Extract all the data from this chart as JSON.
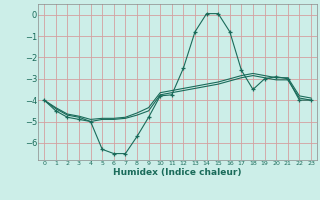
{
  "xlabel": "Humidex (Indice chaleur)",
  "bg_color": "#cceee8",
  "grid_color": "#d4a0a0",
  "line_color": "#1a6b5a",
  "spine_color": "#8a8a8a",
  "xlim": [
    -0.5,
    23.5
  ],
  "ylim": [
    -6.8,
    0.5
  ],
  "yticks": [
    0,
    -1,
    -2,
    -3,
    -4,
    -5,
    -6
  ],
  "xticks": [
    0,
    1,
    2,
    3,
    4,
    5,
    6,
    7,
    8,
    9,
    10,
    11,
    12,
    13,
    14,
    15,
    16,
    17,
    18,
    19,
    20,
    21,
    22,
    23
  ],
  "series1_x": [
    0,
    1,
    2,
    3,
    4,
    5,
    6,
    7,
    8,
    9,
    10,
    11,
    12,
    13,
    14,
    15,
    16,
    17,
    18,
    19,
    20,
    21,
    22,
    23
  ],
  "series1_y": [
    -4.0,
    -4.5,
    -4.8,
    -4.9,
    -5.0,
    -6.3,
    -6.5,
    -6.5,
    -5.7,
    -4.8,
    -3.8,
    -3.75,
    -2.5,
    -0.8,
    0.05,
    0.05,
    -0.8,
    -2.6,
    -3.5,
    -3.0,
    -2.9,
    -3.0,
    -4.0,
    -4.0
  ],
  "series2_x": [
    0,
    1,
    2,
    3,
    4,
    5,
    6,
    7,
    8,
    9,
    10,
    11,
    12,
    13,
    14,
    15,
    16,
    17,
    18,
    19,
    20,
    21,
    22,
    23
  ],
  "series2_y": [
    -4.0,
    -4.4,
    -4.7,
    -4.8,
    -5.0,
    -4.9,
    -4.9,
    -4.85,
    -4.7,
    -4.5,
    -3.75,
    -3.65,
    -3.55,
    -3.45,
    -3.35,
    -3.25,
    -3.1,
    -2.95,
    -2.85,
    -2.95,
    -3.05,
    -3.05,
    -3.9,
    -4.0
  ],
  "series3_x": [
    0,
    1,
    2,
    3,
    4,
    5,
    6,
    7,
    8,
    9,
    10,
    11,
    12,
    13,
    14,
    15,
    16,
    17,
    18,
    19,
    20,
    21,
    22,
    23
  ],
  "series3_y": [
    -4.0,
    -4.35,
    -4.65,
    -4.75,
    -4.9,
    -4.85,
    -4.85,
    -4.8,
    -4.6,
    -4.35,
    -3.65,
    -3.55,
    -3.45,
    -3.35,
    -3.25,
    -3.15,
    -3.0,
    -2.85,
    -2.75,
    -2.85,
    -2.95,
    -2.95,
    -3.8,
    -3.9
  ]
}
